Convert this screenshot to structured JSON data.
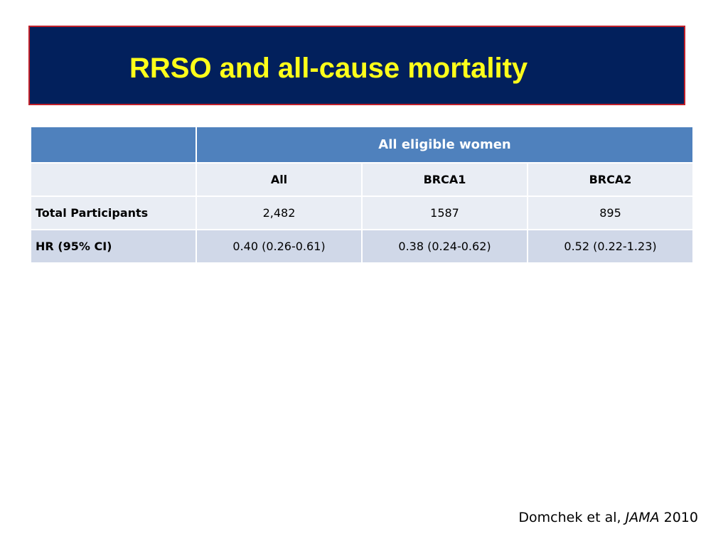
{
  "slide": {
    "title": "RRSO and all-cause mortality"
  },
  "colors": {
    "banner_bg": "#02205c",
    "banner_border": "#c0202a",
    "title_text": "#ffff1a",
    "table_header": "#4f81bd",
    "row_light": "#e9edf4",
    "row_dark": "#d0d8e8"
  },
  "table": {
    "group_header": "All eligible women",
    "columns": [
      "All",
      "BRCA1",
      "BRCA2"
    ],
    "rows": [
      {
        "label": "Total Participants",
        "values": [
          "2,482",
          "1587",
          "895"
        ]
      },
      {
        "label": "HR (95% CI)",
        "values": [
          "0.40 (0.26-0.61)",
          "0.38 (0.24-0.62)",
          "0.52 (0.22-1.23)"
        ]
      }
    ]
  },
  "citation": {
    "authors": "Domchek et al, ",
    "journal": "JAMA",
    "year": " 2010"
  }
}
